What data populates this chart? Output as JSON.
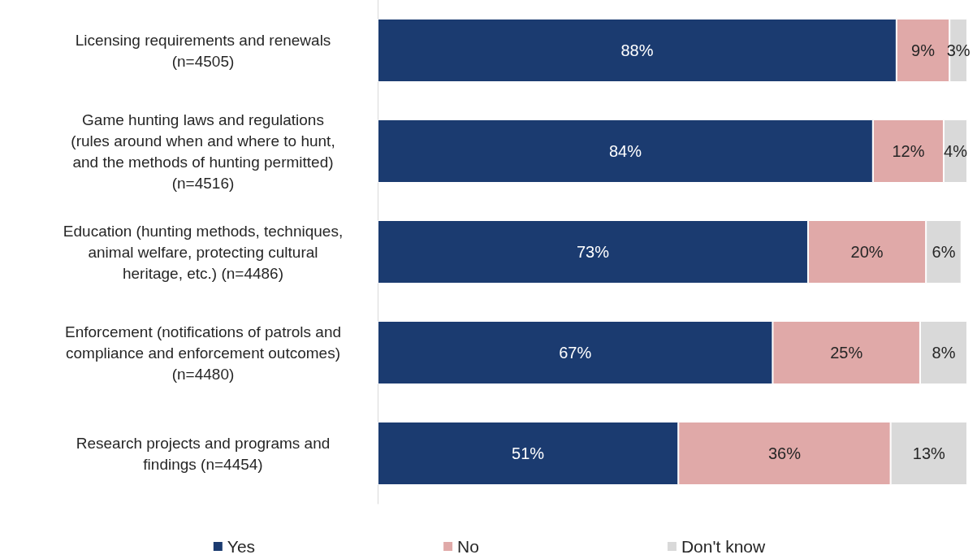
{
  "chart_data": {
    "type": "bar",
    "orientation": "horizontal",
    "stacked": true,
    "legend": "bottom",
    "categories": [
      "Licensing requirements and renewals\n(n=4505)",
      "Game hunting laws and regulations\n(rules around when and where to hunt,\nand the methods of hunting permitted)\n(n=4516)",
      "Education (hunting methods, techniques,\nanimal welfare, protecting cultural\nheritage, etc.) (n=4486)",
      "Enforcement (notifications of patrols and\ncompliance and enforcement outcomes)\n(n=4480)",
      "Research projects and programs and\nfindings (n=4454)"
    ],
    "series": [
      {
        "name": "Yes",
        "color": "#1b3b70",
        "values": [
          88,
          84,
          73,
          67,
          51
        ],
        "value_labels": [
          "88%",
          "84%",
          "73%",
          "67%",
          "51%"
        ]
      },
      {
        "name": "No",
        "color": "#e0a9a8",
        "values": [
          9,
          12,
          20,
          25,
          36
        ],
        "value_labels": [
          "9%",
          "12%",
          "20%",
          "25%",
          "36%"
        ]
      },
      {
        "name": "Don't know",
        "color": "#d9d9d9",
        "values": [
          3,
          4,
          6,
          8,
          13
        ],
        "value_labels": [
          "3%",
          "4%",
          "6%",
          "8%",
          "13%"
        ]
      }
    ]
  }
}
